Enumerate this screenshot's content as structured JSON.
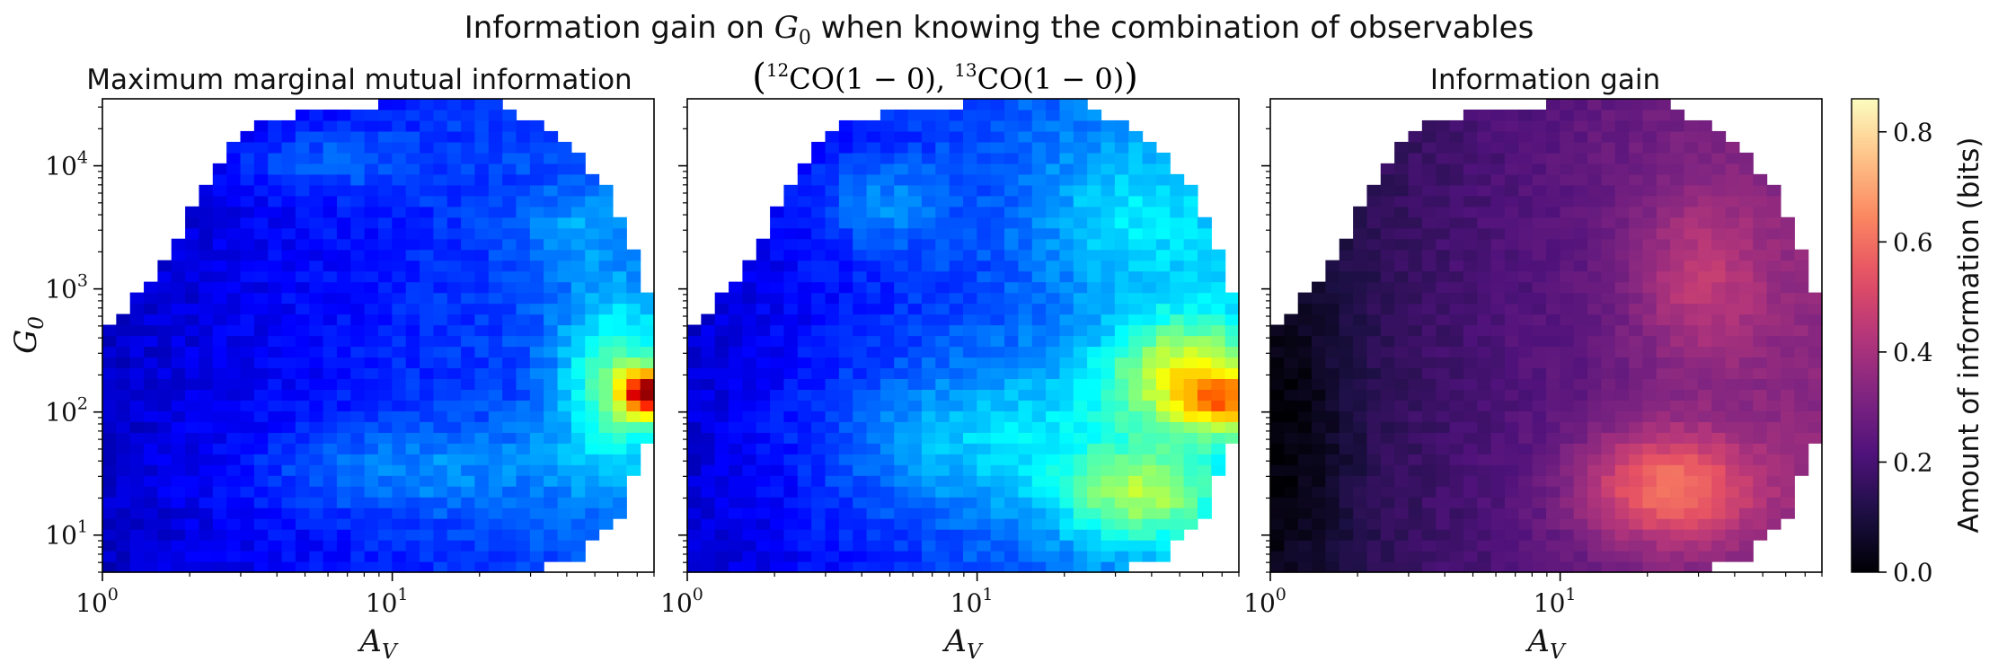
{
  "figure": {
    "title_prefix": "Information gain on ",
    "title_var": "G",
    "title_var_sub": "0",
    "title_suffix": " when knowing the combination of observables"
  },
  "colorbar": {
    "label": "Amount of information (bits)",
    "range": [
      0.0,
      0.86
    ],
    "ticks": [
      "0.0",
      "0.2",
      "0.4",
      "0.6",
      "0.8"
    ],
    "tick_values": [
      0.0,
      0.2,
      0.4,
      0.6,
      0.8
    ]
  },
  "chart_data": [
    {
      "type": "heatmap",
      "title": "Maximum marginal mutual information",
      "colormap": "jet",
      "xlabel": "A_V",
      "ylabel": "G_0",
      "xscale": "log",
      "yscale": "log",
      "xlim": [
        1,
        80
      ],
      "ylim": [
        5,
        35000
      ],
      "xticks": [
        "10^0",
        "10^1"
      ],
      "yticks": [
        "10^1",
        "10^2",
        "10^3",
        "10^4"
      ],
      "value_range": [
        0.0,
        0.86
      ],
      "features": [
        {
          "region": "A_V 60-80, G_0 40-70",
          "value": 0.8
        },
        {
          "region": "A_V 10-40, G_0 8-30",
          "value": 0.45
        },
        {
          "region": "A_V 40-80, G_0 30-300",
          "value": 0.5
        },
        {
          "region": "A_V 1-10, G_0 30-3000",
          "value": 0.1
        }
      ]
    },
    {
      "type": "heatmap",
      "title": "(12CO(1-0), 13CO(1-0))",
      "title_parts": {
        "iso1": "12",
        "mol1": "CO",
        "trans1": "(1 − 0), ",
        "iso2": "13",
        "mol2": "CO",
        "trans2": "(1 − 0)"
      },
      "colormap": "jet",
      "xlabel": "A_V",
      "xscale": "log",
      "yscale": "log",
      "xlim": [
        1,
        80
      ],
      "ylim": [
        5,
        35000
      ],
      "xticks": [
        "10^0",
        "10^1"
      ],
      "value_range": [
        0.0,
        0.86
      ],
      "features": [
        {
          "region": "A_V 40-80, G_0 40-80",
          "value": 0.85
        },
        {
          "region": "A_V 20-40, G_0 6-20",
          "value": 0.65
        },
        {
          "region": "A_V 10-80, G_0 10-300",
          "value": 0.55
        },
        {
          "region": "A_V 1-10, G_0 30-3000",
          "value": 0.12
        }
      ]
    },
    {
      "type": "heatmap",
      "title": "Information gain",
      "colormap": "magma",
      "xlabel": "A_V",
      "xscale": "log",
      "yscale": "log",
      "xlim": [
        1,
        80
      ],
      "ylim": [
        5,
        35000
      ],
      "xticks": [
        "10^0",
        "10^1"
      ],
      "value_range": [
        0.0,
        0.86
      ],
      "features": [
        {
          "region": "A_V 20-50, G_0 10-50",
          "value": 0.75
        },
        {
          "region": "A_V 20-60, G_0 300-3000",
          "value": 0.6
        },
        {
          "region": "A_V 5-20, G_0 10-3000",
          "value": 0.4
        },
        {
          "region": "A_V 1-3, G_0 5-300",
          "value": 0.02
        }
      ]
    }
  ]
}
